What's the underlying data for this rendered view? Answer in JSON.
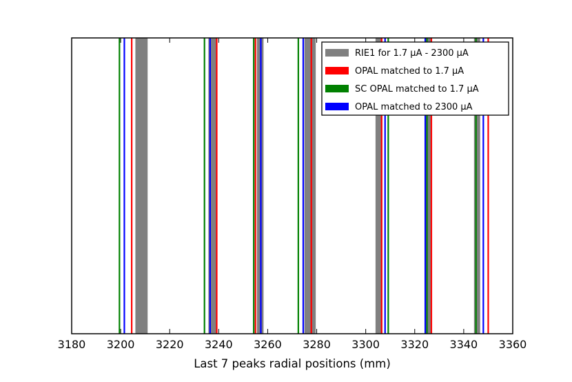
{
  "chart_data": {
    "type": "vertical-bands",
    "title": "",
    "xlabel": "Last 7 peaks radial positions (mm)",
    "ylabel": "",
    "xlim": [
      3180,
      3360
    ],
    "ylim": [
      0,
      1
    ],
    "xticks": [
      "3180",
      "3200",
      "3220",
      "3240",
      "3260",
      "3280",
      "3300",
      "3320",
      "3340",
      "3360"
    ],
    "grid": false,
    "legend_position": "top-right",
    "series": [
      {
        "name": "RIE1 for 1.7 μA - 2300 μA",
        "color": "#808080",
        "kind": "band",
        "ranges": [
          [
            3206.0,
            3211.0
          ],
          [
            3235.8,
            3239.0
          ],
          [
            3255.6,
            3258.3
          ],
          [
            3275.0,
            3279.6
          ],
          [
            3304.0,
            3306.8
          ],
          [
            3324.0,
            3326.6
          ],
          [
            3344.2,
            3346.7
          ]
        ]
      },
      {
        "name": "OPAL matched to 1.7 μA",
        "color": "#ff0000",
        "kind": "line",
        "x": [
          3204.5,
          3239.2,
          3255.0,
          3277.8,
          3306.5,
          3326.8,
          3350.0
        ]
      },
      {
        "name": " SC OPAL matched to 1.7 μA",
        "color": "#008000",
        "kind": "line",
        "x": [
          3199.5,
          3234.2,
          3254.3,
          3272.5,
          3309.2,
          3325.0,
          3345.0
        ]
      },
      {
        "name": "OPAL matched to 2300 μA",
        "color": "#0000ff",
        "kind": "line",
        "x": [
          3201.5,
          3236.5,
          3257.2,
          3274.5,
          3307.9,
          3324.3,
          3348.0
        ]
      }
    ]
  }
}
